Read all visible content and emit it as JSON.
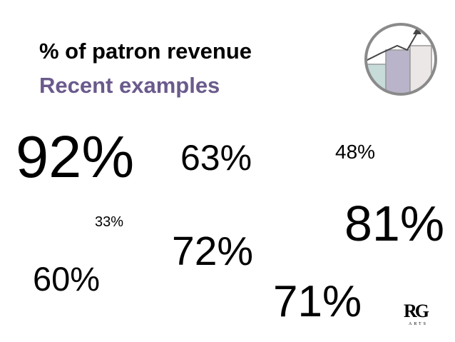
{
  "header": {
    "title": "% of patron revenue",
    "subtitle": "Recent examples"
  },
  "examples": [
    "92%",
    "63%",
    "48%",
    "33%",
    "81%",
    "72%",
    "60%",
    "71%"
  ],
  "logo": {
    "mark": "RG",
    "text": "ARTS"
  }
}
